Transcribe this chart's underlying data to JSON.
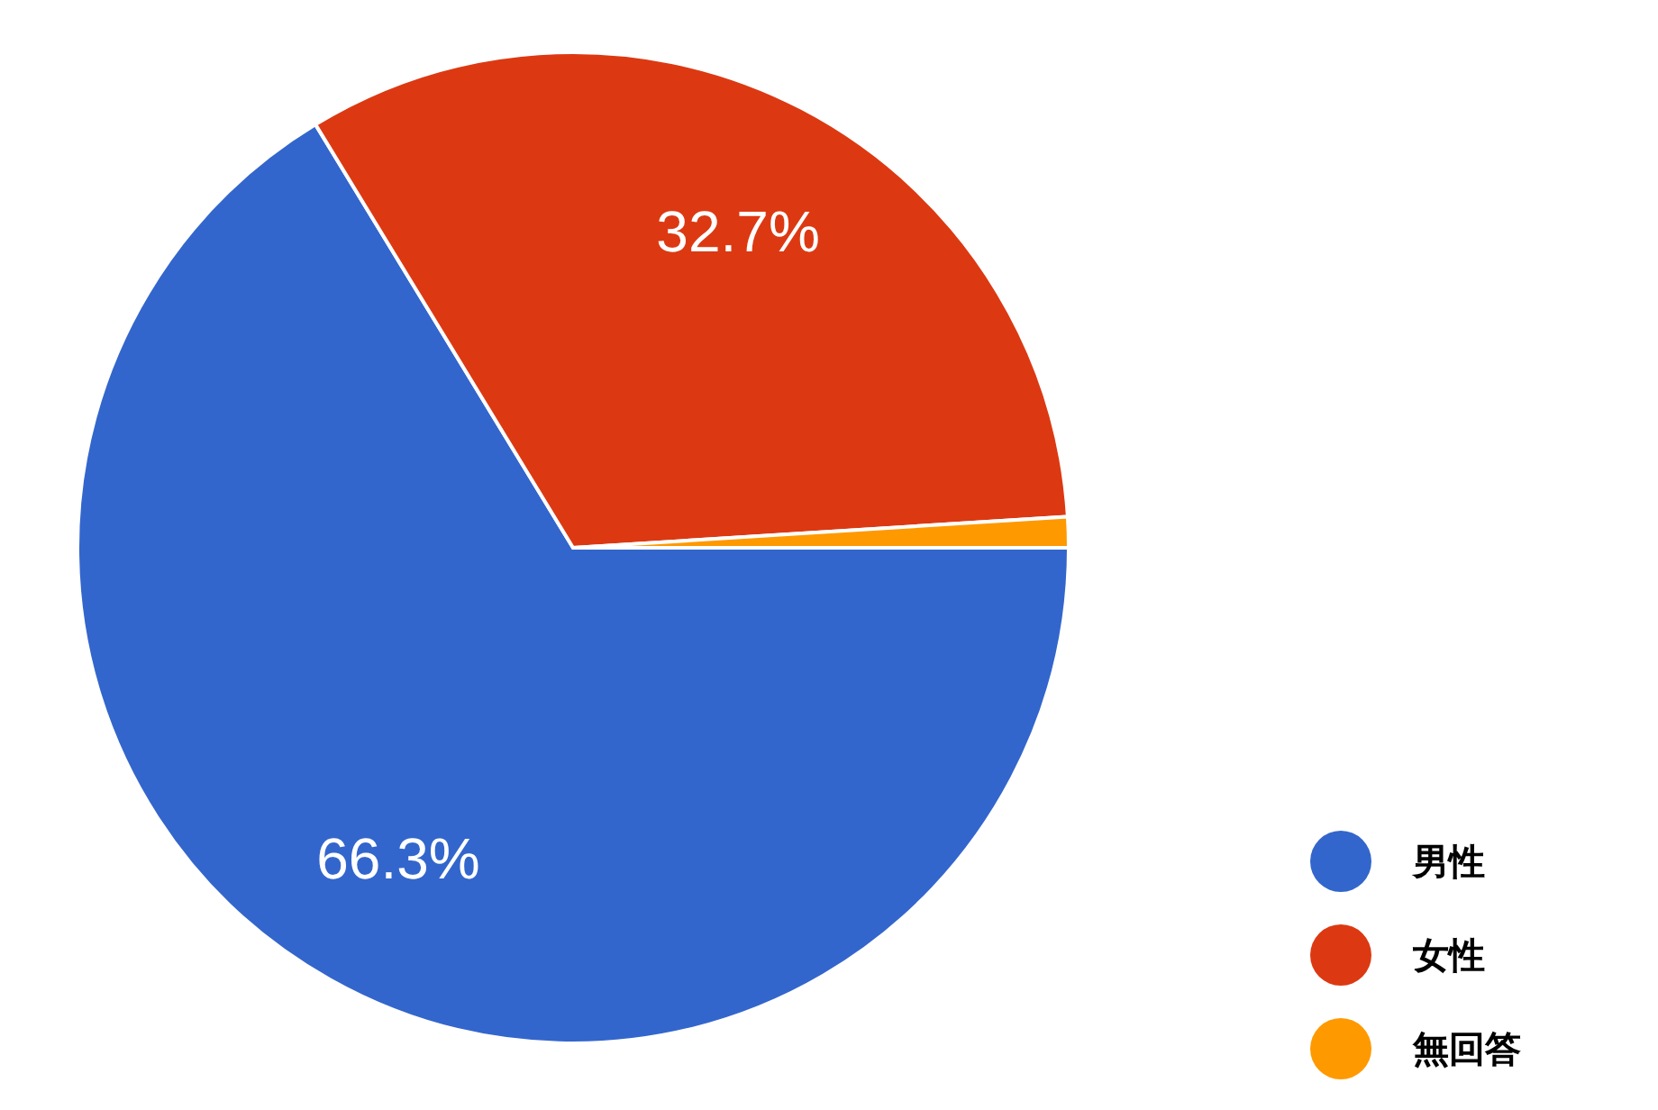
{
  "chart_data": {
    "type": "pie",
    "categories": [
      "男性",
      "女性",
      "無回答"
    ],
    "values": [
      66.3,
      32.7,
      1.0
    ],
    "colors": [
      "#3366cc",
      "#dc3912",
      "#ff9900"
    ],
    "value_labels": [
      "66.3%",
      "32.7%",
      null
    ],
    "legend": "bottom right"
  }
}
